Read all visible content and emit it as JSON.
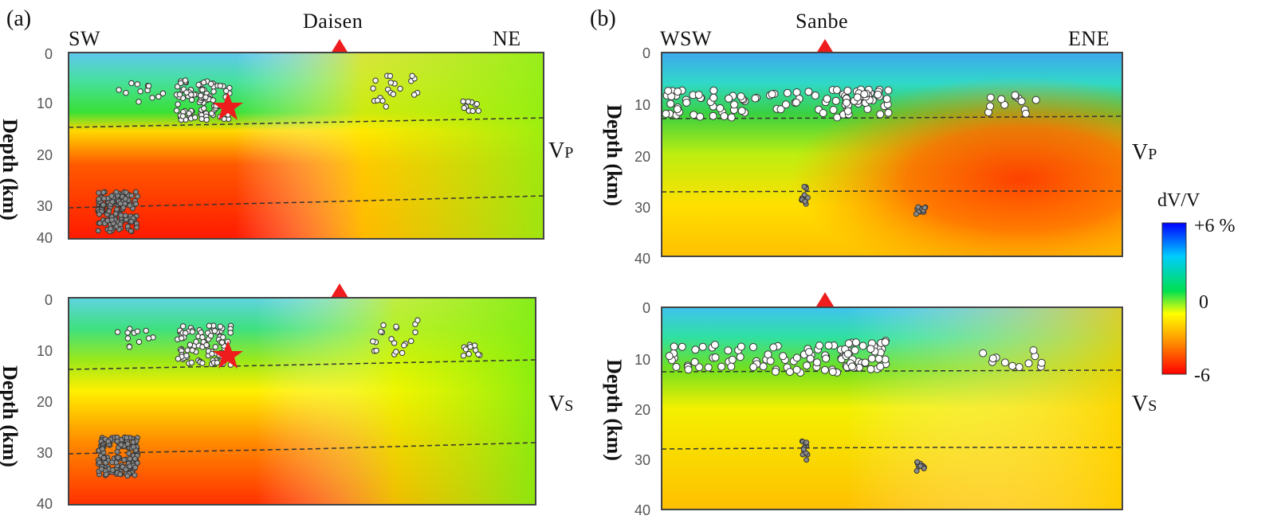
{
  "panel_a": {
    "label": "(a)",
    "left_dir": "SW",
    "right_dir": "NE",
    "volcano": "Daisen",
    "ylabel": "Depth (km)",
    "yticks": [
      "0",
      "10",
      "20",
      "30",
      "40"
    ],
    "top_wave": "V",
    "top_wave_sub": "P",
    "bottom_wave": "V",
    "bottom_wave_sub": "S"
  },
  "panel_b": {
    "label": "(b)",
    "left_dir": "WSW",
    "right_dir": "ENE",
    "volcano": "Sanbe",
    "ylabel": "Depth (km)",
    "yticks": [
      "0",
      "10",
      "20",
      "30",
      "40"
    ],
    "top_wave": "V",
    "top_wave_sub": "P",
    "bottom_wave": "V",
    "bottom_wave_sub": "S"
  },
  "colorbar": {
    "title": "dV/V",
    "max": "+6 %",
    "mid": "0",
    "min": "-6",
    "colors": [
      "#0000ff",
      "#00ccff",
      "#00e050",
      "#ffff00",
      "#ff8800",
      "#ff0000"
    ]
  }
}
